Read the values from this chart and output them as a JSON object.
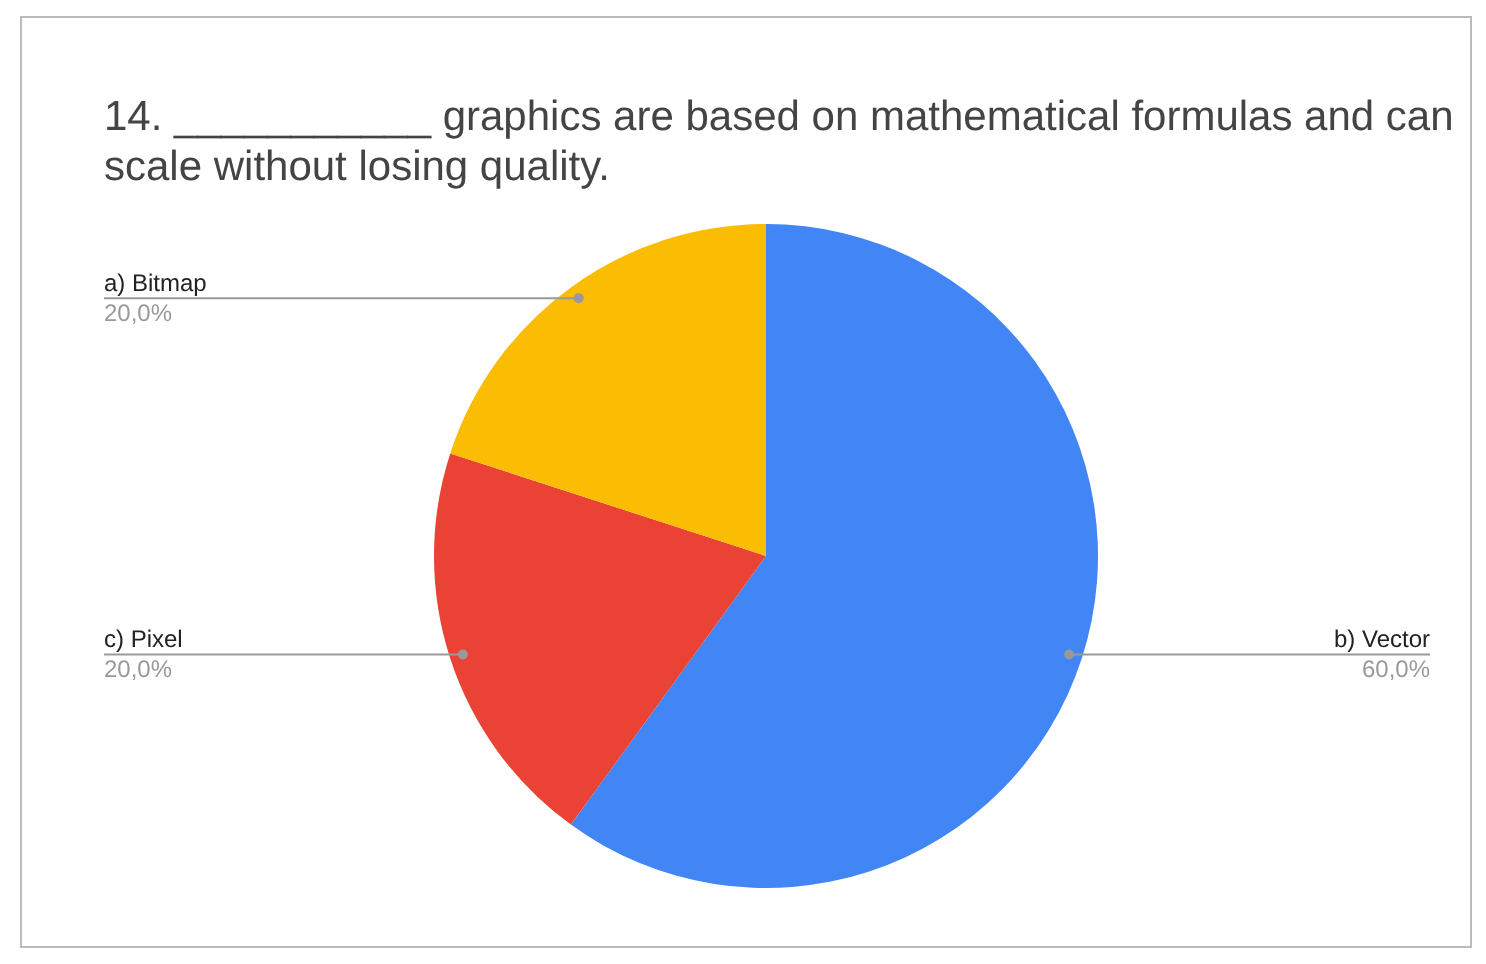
{
  "chart_data": {
    "type": "pie",
    "title": "14. ___________ graphics are based on mathematical formulas and can scale without losing quality.",
    "categories": [
      "b) Vector",
      "c) Pixel",
      "a) Bitmap"
    ],
    "values": [
      60,
      20,
      20
    ],
    "value_labels": [
      "60,0%",
      "20,0%",
      "20,0%"
    ],
    "colors": [
      "#4285f4",
      "#ea4335",
      "#fbbc04"
    ],
    "legend": false
  }
}
